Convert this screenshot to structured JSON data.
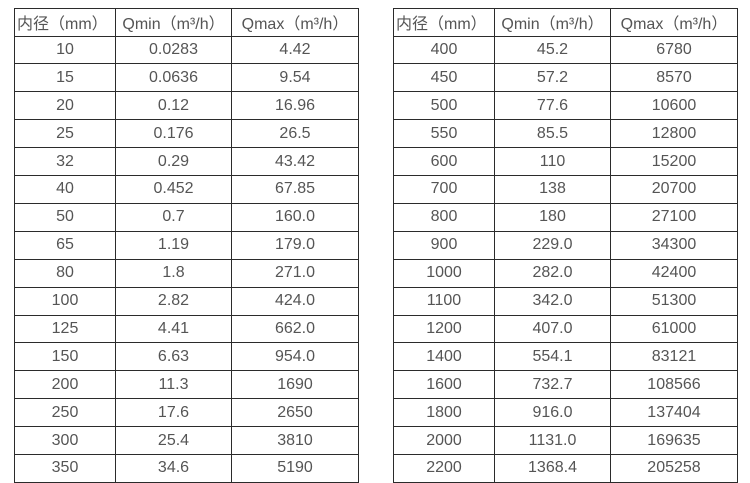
{
  "chart_data": [
    {
      "type": "table",
      "title": "",
      "columns": [
        "内径（mm）",
        "Qmin（m³/h）",
        "Qmax（m³/h）"
      ],
      "rows": [
        [
          "10",
          "0.0283",
          "4.42"
        ],
        [
          "15",
          "0.0636",
          "9.54"
        ],
        [
          "20",
          "0.12",
          "16.96"
        ],
        [
          "25",
          "0.176",
          "26.5"
        ],
        [
          "32",
          "0.29",
          "43.42"
        ],
        [
          "40",
          "0.452",
          "67.85"
        ],
        [
          "50",
          "0.7",
          "160.0"
        ],
        [
          "65",
          "1.19",
          "179.0"
        ],
        [
          "80",
          "1.8",
          "271.0"
        ],
        [
          "100",
          "2.82",
          "424.0"
        ],
        [
          "125",
          "4.41",
          "662.0"
        ],
        [
          "150",
          "6.63",
          "954.0"
        ],
        [
          "200",
          "11.3",
          "1690"
        ],
        [
          "250",
          "17.6",
          "2650"
        ],
        [
          "300",
          "25.4",
          "3810"
        ],
        [
          "350",
          "34.6",
          "5190"
        ]
      ]
    },
    {
      "type": "table",
      "title": "",
      "columns": [
        "内径（mm）",
        "Qmin（m³/h）",
        "Qmax（m³/h）"
      ],
      "rows": [
        [
          "400",
          "45.2",
          "6780"
        ],
        [
          "450",
          "57.2",
          "8570"
        ],
        [
          "500",
          "77.6",
          "10600"
        ],
        [
          "550",
          "85.5",
          "12800"
        ],
        [
          "600",
          "110",
          "15200"
        ],
        [
          "700",
          "138",
          "20700"
        ],
        [
          "800",
          "180",
          "27100"
        ],
        [
          "900",
          "229.0",
          "34300"
        ],
        [
          "1000",
          "282.0",
          "42400"
        ],
        [
          "1100",
          "342.0",
          "51300"
        ],
        [
          "1200",
          "407.0",
          "61000"
        ],
        [
          "1400",
          "554.1",
          "83121"
        ],
        [
          "1600",
          "732.7",
          "108566"
        ],
        [
          "1800",
          "916.0",
          "137404"
        ],
        [
          "2000",
          "1131.0",
          "169635"
        ],
        [
          "2200",
          "1368.4",
          "205258"
        ]
      ]
    }
  ],
  "styles": {
    "border_color": "#2b2b2b",
    "text_color": "#555555",
    "background_color": "#ffffff"
  }
}
